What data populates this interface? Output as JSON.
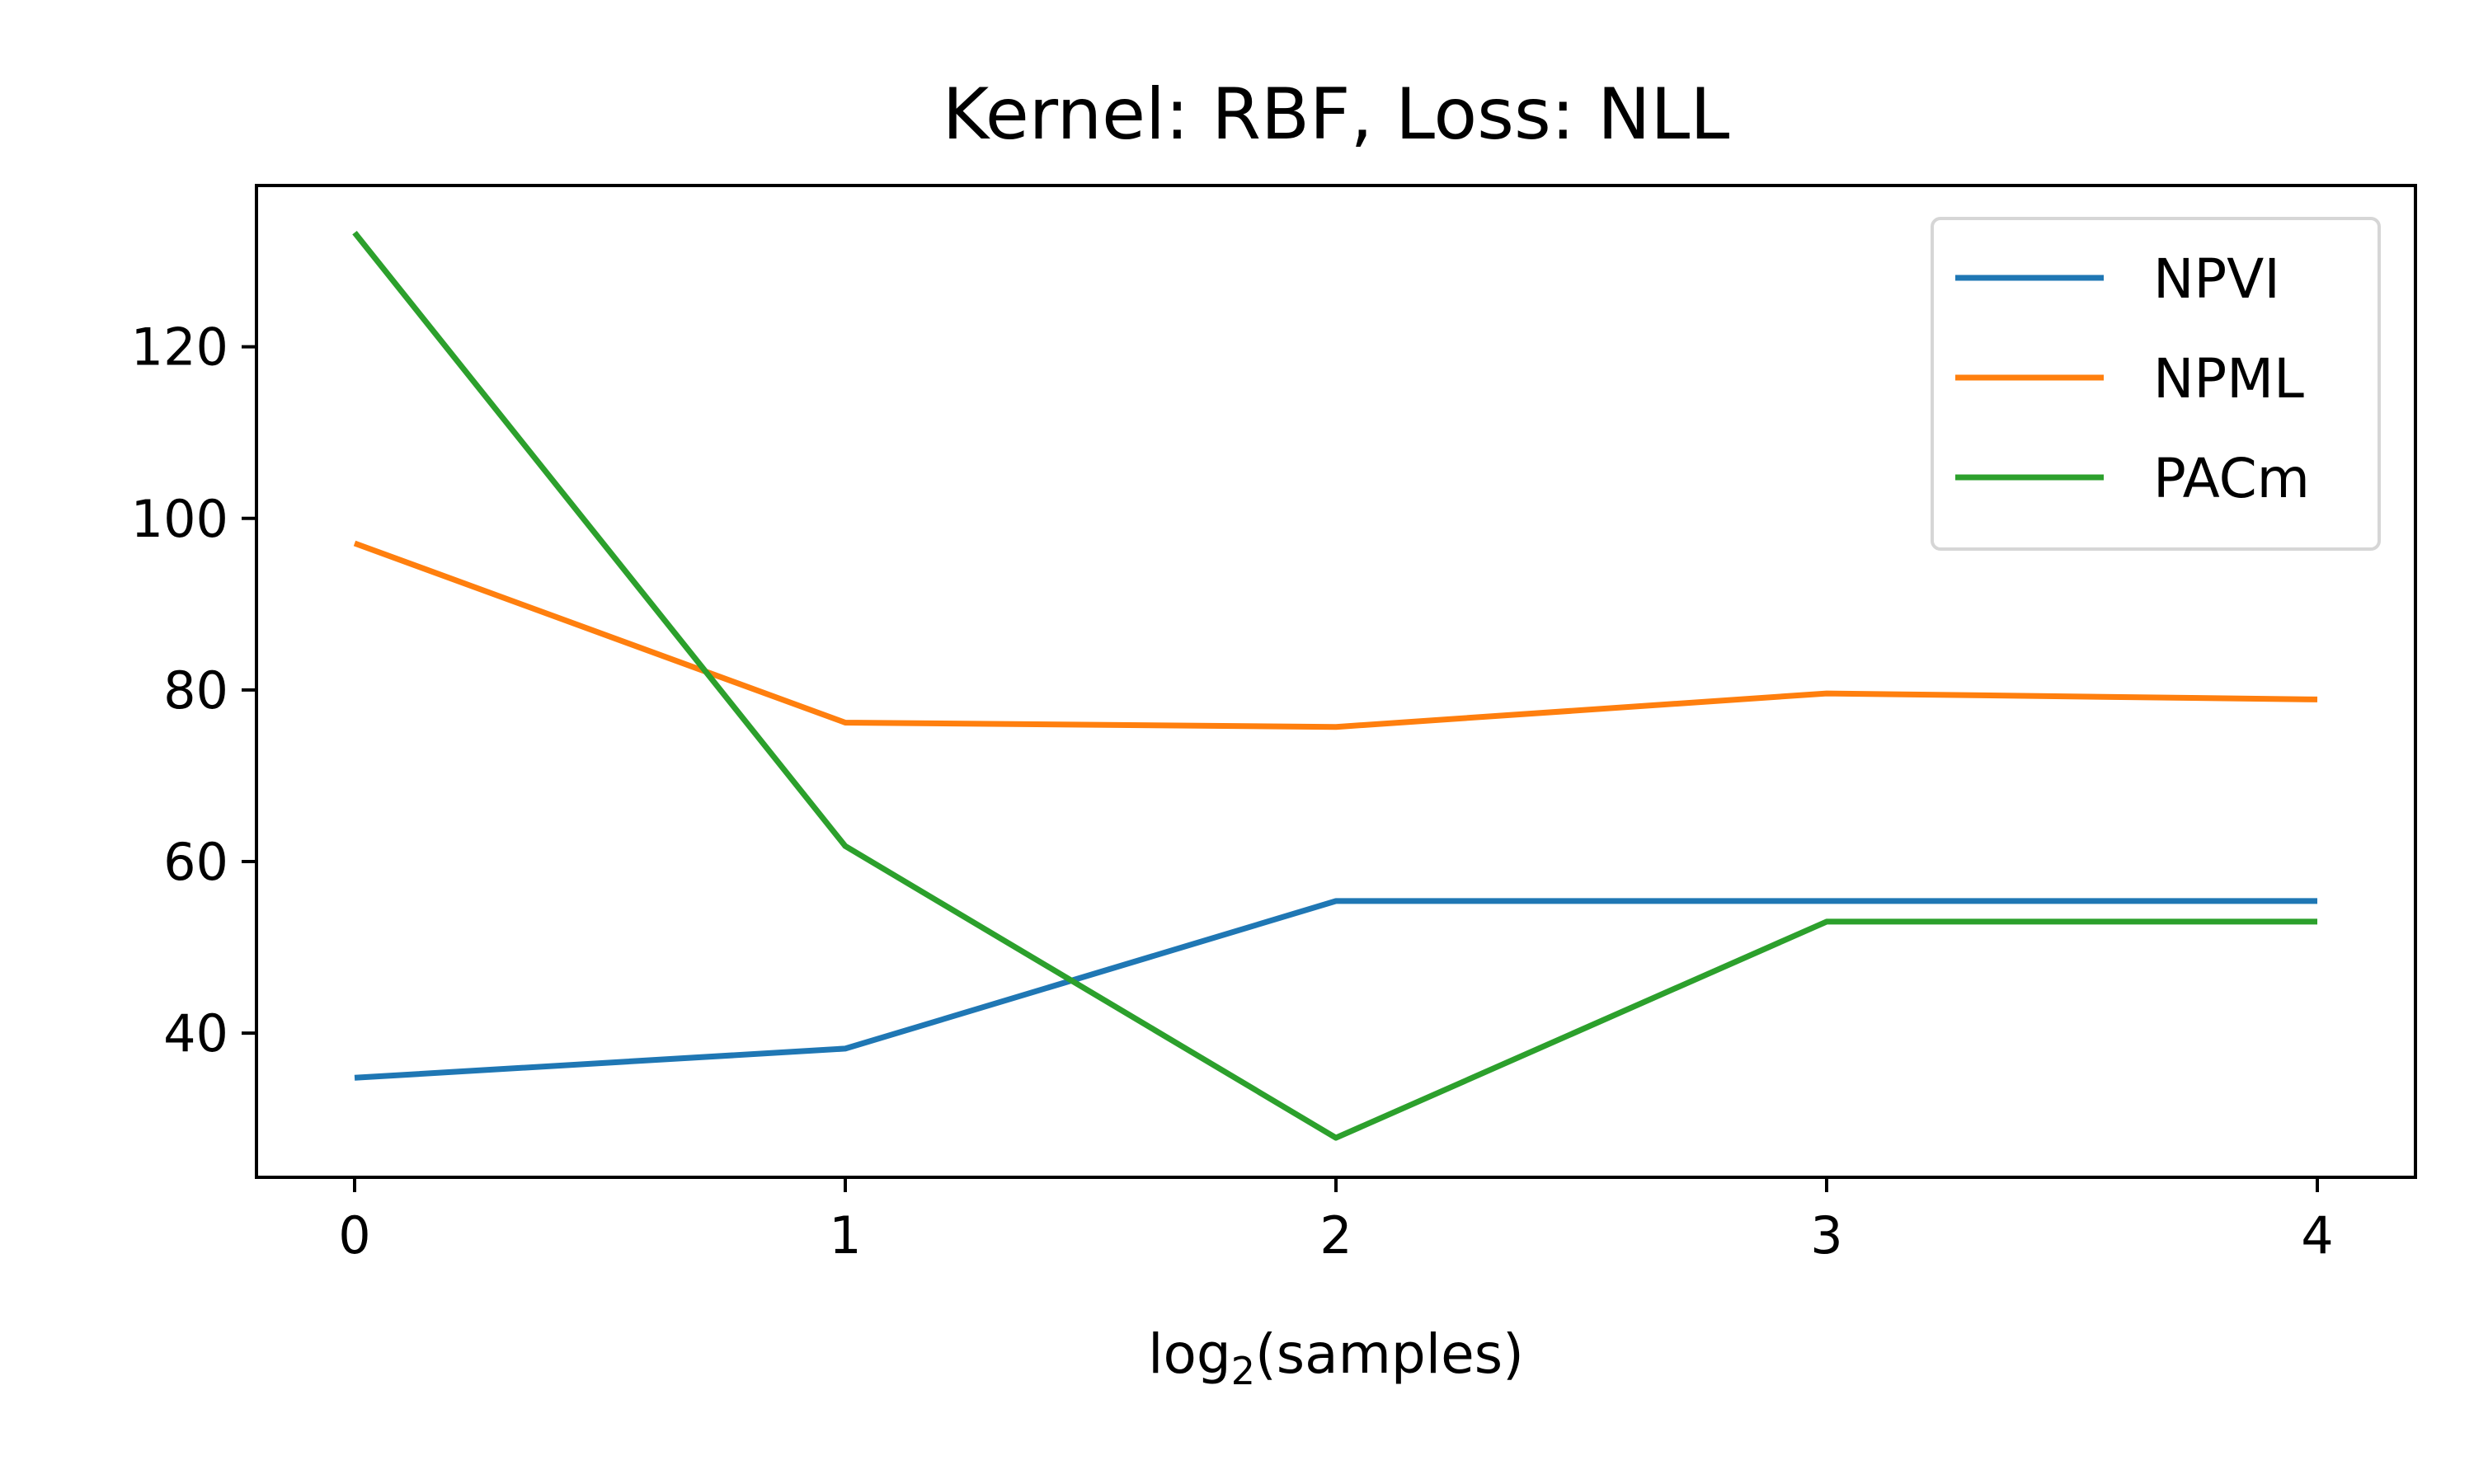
{
  "chart_data": {
    "type": "line",
    "title": "Kernel: RBF, Loss: NLL",
    "xlabel": {
      "prefix": "log",
      "subscript": "2",
      "suffix": "(samples)"
    },
    "ylabel": "",
    "x": [
      0,
      1,
      2,
      3,
      4
    ],
    "xticks": [
      "0",
      "1",
      "2",
      "3",
      "4"
    ],
    "yticks": [
      40,
      60,
      80,
      100,
      120
    ],
    "xlim": [
      -0.2,
      4.2
    ],
    "ylim": [
      23.2,
      138.8
    ],
    "grid": false,
    "legend_position": "top-right",
    "series": [
      {
        "name": "NPVI",
        "color": "#1f77b4",
        "values": [
          34.8,
          38.2,
          55.4,
          55.4,
          55.4
        ]
      },
      {
        "name": "NPML",
        "color": "#ff7f0e",
        "values": [
          97.1,
          76.2,
          75.7,
          79.6,
          78.9
        ]
      },
      {
        "name": "PACm",
        "color": "#2ca02c",
        "values": [
          133.3,
          61.8,
          27.8,
          53.0,
          53.0
        ]
      }
    ]
  }
}
